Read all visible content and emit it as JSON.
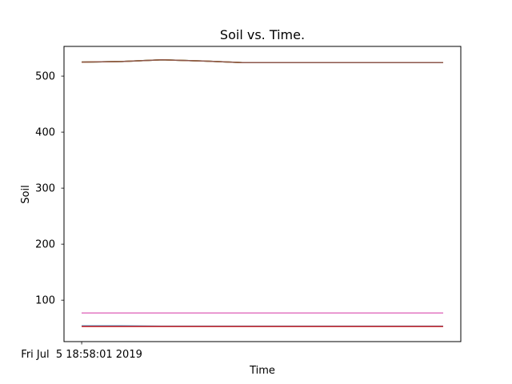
{
  "chart_data": {
    "type": "line",
    "title": "Soil vs. Time.",
    "xlabel": "Time",
    "ylabel": "Soil",
    "x_tick_labels": [
      "Fri Jul  5 18:58:01 2019"
    ],
    "x": [
      0,
      1,
      2,
      3,
      4,
      5,
      6,
      7,
      8,
      9
    ],
    "xlim": [
      -0.44,
      9.44
    ],
    "ylim": [
      26,
      553
    ],
    "y_ticks": [
      100,
      200,
      300,
      400,
      500
    ],
    "grid": false,
    "series": [
      {
        "color": "#1f77b4",
        "values": [
          525,
          526,
          529,
          527,
          524,
          524,
          524,
          524,
          524,
          524
        ]
      },
      {
        "color": "#2ca02c",
        "values": [
          525,
          526,
          529,
          527,
          524,
          524,
          524,
          524,
          524,
          524
        ]
      },
      {
        "color": "#ff7f0e",
        "values": [
          525,
          526,
          529,
          527,
          524,
          524,
          524,
          524,
          524,
          524
        ]
      },
      {
        "color": "#8c564b",
        "values": [
          525,
          526,
          529,
          527,
          524,
          524,
          524,
          524,
          524,
          524
        ]
      },
      {
        "color": "#9467bd",
        "values": [
          77,
          77,
          77,
          77,
          77,
          77,
          77,
          77,
          77,
          77
        ]
      },
      {
        "color": "#e377c2",
        "values": [
          77,
          77,
          77,
          77,
          77,
          77,
          77,
          77,
          77,
          77
        ]
      },
      {
        "color": "#1f77b4",
        "values": [
          54,
          54,
          53.5,
          53.5,
          53.5,
          53.5,
          53.5,
          53.5,
          53.5,
          53.5
        ]
      },
      {
        "color": "#d62728",
        "values": [
          53,
          53,
          53,
          53,
          53,
          53,
          53,
          53,
          53,
          53
        ]
      }
    ]
  }
}
